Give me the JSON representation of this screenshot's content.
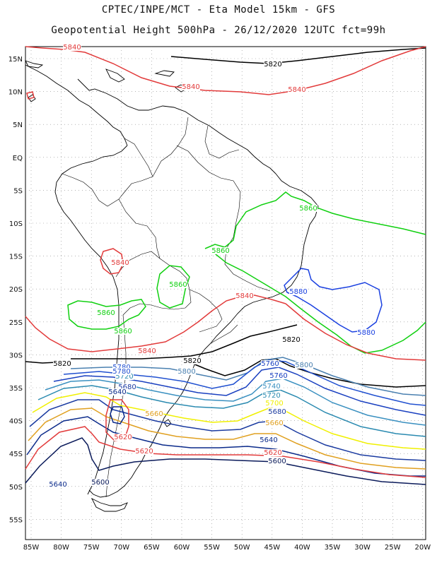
{
  "header": {
    "line1": "CPTEC/INPE/MCT -  Eta Model 15km - GFS",
    "line2": "Geopotential Height 500hPa - 26/12/2020 12UTC fct=99h"
  },
  "lat_labels": [
    "15N",
    "10N",
    "5N",
    "EQ",
    "5S",
    "10S",
    "15S",
    "20S",
    "25S",
    "30S",
    "35S",
    "40S",
    "45S",
    "50S",
    "55S"
  ],
  "lon_labels": [
    "85W",
    "80W",
    "75W",
    "70W",
    "65W",
    "60W",
    "55W",
    "50W",
    "45W",
    "40W",
    "35W",
    "30W",
    "25W",
    "20W"
  ],
  "colors": {
    "c5600": "#0a1a5a",
    "c5620": "#e23b3b",
    "c5640": "#0a2a8a",
    "c5660": "#e0a020",
    "c5680": "#1a3aa0",
    "c5700": "#f0f000",
    "c5720": "#2a8ab0",
    "c5740": "#3a90c0",
    "c5760": "#1a40c0",
    "c5780": "#2050d0",
    "c5800": "#4a80b0",
    "c5820": "#000000",
    "c5840": "#e23b3b",
    "c5860": "#10d010",
    "c5880": "#1a40e0",
    "land": "#000000",
    "grid": "#888888"
  },
  "contour_labels": [
    {
      "id": "l5840a",
      "text": "5840"
    },
    {
      "id": "l5820a",
      "text": "5820"
    },
    {
      "id": "l5840b",
      "text": "5840"
    },
    {
      "id": "l5840c",
      "text": "5840"
    },
    {
      "id": "l5860a",
      "text": "5860"
    },
    {
      "id": "l5860b",
      "text": "5860"
    },
    {
      "id": "l5840d",
      "text": "5840"
    },
    {
      "id": "l5860c",
      "text": "5860"
    },
    {
      "id": "l5840e",
      "text": "5840"
    },
    {
      "id": "l5880a",
      "text": "5880"
    },
    {
      "id": "l5860d",
      "text": "5860"
    },
    {
      "id": "l5860e",
      "text": "5860"
    },
    {
      "id": "l5880b",
      "text": "5880"
    },
    {
      "id": "l5820b",
      "text": "5820"
    },
    {
      "id": "l5840f",
      "text": "5840"
    },
    {
      "id": "l5820c",
      "text": "5820"
    },
    {
      "id": "l5820d",
      "text": "5820"
    },
    {
      "id": "l5780a",
      "text": "5780"
    },
    {
      "id": "l5760a",
      "text": "5760"
    },
    {
      "id": "l5720a",
      "text": "5720"
    },
    {
      "id": "l5800a",
      "text": "5800"
    },
    {
      "id": "l5680a",
      "text": "5680"
    },
    {
      "id": "l5640a",
      "text": "5640"
    },
    {
      "id": "l5780b",
      "text": "5780"
    },
    {
      "id": "l5800b",
      "text": "5800"
    },
    {
      "id": "l5760b",
      "text": "5760"
    },
    {
      "id": "l5740a",
      "text": "5740"
    },
    {
      "id": "l5720b",
      "text": "5720"
    },
    {
      "id": "l5680b",
      "text": "5680"
    },
    {
      "id": "l5700a",
      "text": "5700"
    },
    {
      "id": "l5660a",
      "text": "5660"
    },
    {
      "id": "l5660b",
      "text": "5660"
    },
    {
      "id": "l5640b",
      "text": "5640"
    },
    {
      "id": "l5620a",
      "text": "5620"
    },
    {
      "id": "l5620b",
      "text": "5620"
    },
    {
      "id": "l5620c",
      "text": "5620"
    },
    {
      "id": "l5600a",
      "text": "5600"
    },
    {
      "id": "l5640c",
      "text": "5640"
    },
    {
      "id": "l5600b",
      "text": "5600"
    }
  ]
}
